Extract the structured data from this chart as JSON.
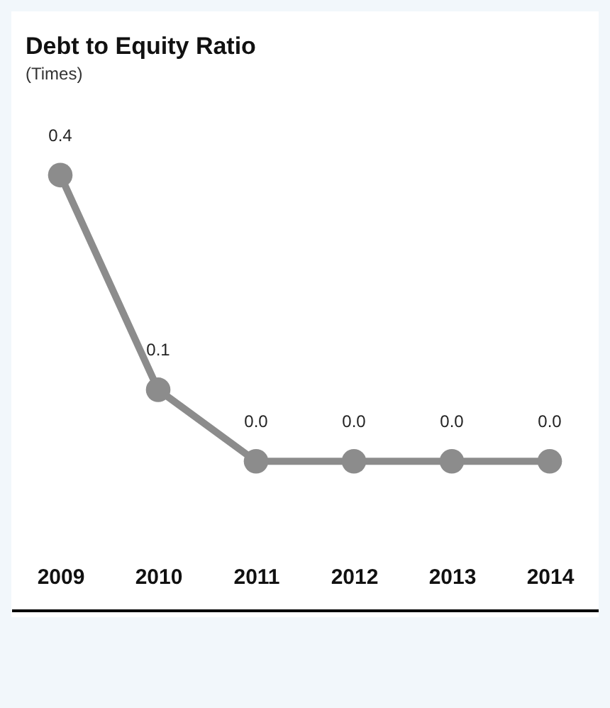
{
  "chart_data": {
    "type": "line",
    "title": "Debt to Equity Ratio",
    "subtitle": "(Times)",
    "categories": [
      "2009",
      "2010",
      "2011",
      "2012",
      "2013",
      "2014"
    ],
    "series": [
      {
        "color": "#8c8c8c",
        "values": [
          0.4,
          0.1,
          0.0,
          0.0,
          0.0,
          0.0
        ],
        "value_labels": [
          "0.4",
          "0.1",
          "0.0",
          "0.0",
          "0.0",
          "0.0"
        ]
      }
    ],
    "marker": "circle",
    "line_style": "solid",
    "grid": false,
    "legend": false,
    "tick_labels": "x"
  }
}
